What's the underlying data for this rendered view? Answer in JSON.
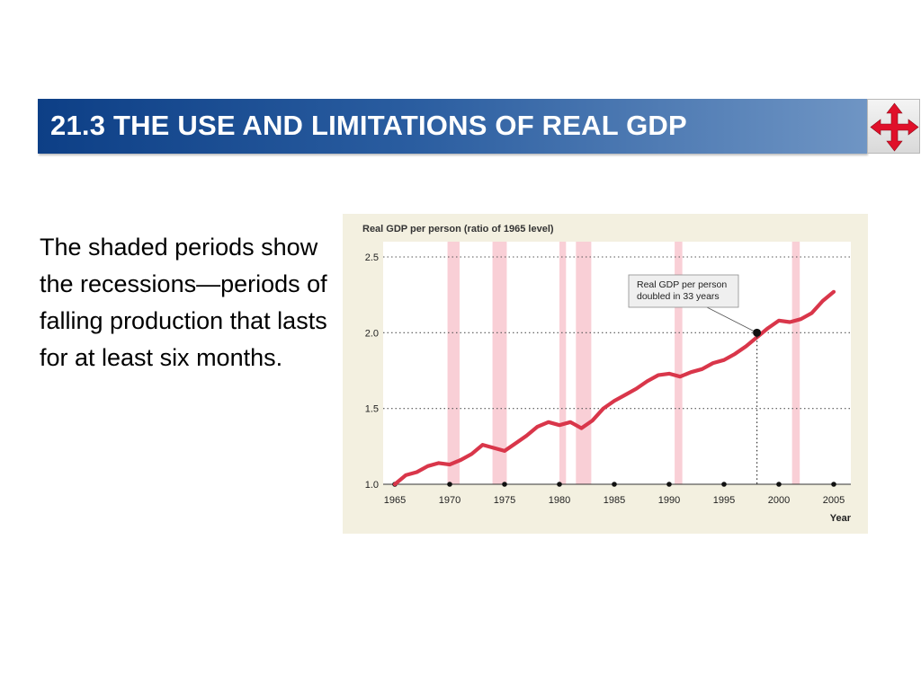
{
  "slide": {
    "title": "21.3 THE USE AND LIMITATIONS OF REAL GDP",
    "body_text": "The shaded periods show the recessions—periods of falling production that lasts for at least six months.",
    "nav_icon": "four-way-arrows-icon",
    "accent_color": "#0d3f86"
  },
  "chart_data": {
    "type": "line",
    "title": "Real GDP per person (ratio of 1965 level)",
    "xlabel": "Year",
    "ylabel": "",
    "xlim": [
      1965,
      2005
    ],
    "ylim": [
      1.0,
      2.5
    ],
    "x_ticks": [
      1965,
      1970,
      1975,
      1980,
      1985,
      1990,
      1995,
      2000,
      2005
    ],
    "y_ticks": [
      "1.0",
      "1.5",
      "2.0",
      "2.5"
    ],
    "grid": "horizontal dotted",
    "series": [
      {
        "color": "#d9364a",
        "points": [
          [
            1965,
            1.0
          ],
          [
            1966,
            1.06
          ],
          [
            1967,
            1.08
          ],
          [
            1968,
            1.12
          ],
          [
            1969,
            1.14
          ],
          [
            1970,
            1.13
          ],
          [
            1971,
            1.16
          ],
          [
            1972,
            1.2
          ],
          [
            1973,
            1.26
          ],
          [
            1974,
            1.24
          ],
          [
            1975,
            1.22
          ],
          [
            1976,
            1.27
          ],
          [
            1977,
            1.32
          ],
          [
            1978,
            1.38
          ],
          [
            1979,
            1.41
          ],
          [
            1980,
            1.39
          ],
          [
            1981,
            1.41
          ],
          [
            1982,
            1.37
          ],
          [
            1983,
            1.42
          ],
          [
            1984,
            1.5
          ],
          [
            1985,
            1.55
          ],
          [
            1986,
            1.59
          ],
          [
            1987,
            1.63
          ],
          [
            1988,
            1.68
          ],
          [
            1989,
            1.72
          ],
          [
            1990,
            1.73
          ],
          [
            1991,
            1.71
          ],
          [
            1992,
            1.74
          ],
          [
            1993,
            1.76
          ],
          [
            1994,
            1.8
          ],
          [
            1995,
            1.82
          ],
          [
            1996,
            1.86
          ],
          [
            1997,
            1.91
          ],
          [
            1998,
            1.97
          ],
          [
            1999,
            2.03
          ],
          [
            2000,
            2.08
          ],
          [
            2001,
            2.07
          ],
          [
            2002,
            2.09
          ],
          [
            2003,
            2.13
          ],
          [
            2004,
            2.21
          ],
          [
            2005,
            2.27
          ]
        ]
      }
    ],
    "recessions": [
      [
        1969.8,
        1970.9
      ],
      [
        1973.9,
        1975.2
      ],
      [
        1980.0,
        1980.6
      ],
      [
        1981.5,
        1982.9
      ],
      [
        1990.5,
        1991.2
      ],
      [
        2001.2,
        2001.9
      ]
    ],
    "recession_color": "#f9cfd6",
    "annotation": {
      "lines": [
        "Real GDP per person",
        "doubled in 33 years"
      ],
      "point": [
        1998,
        2.0
      ]
    }
  }
}
